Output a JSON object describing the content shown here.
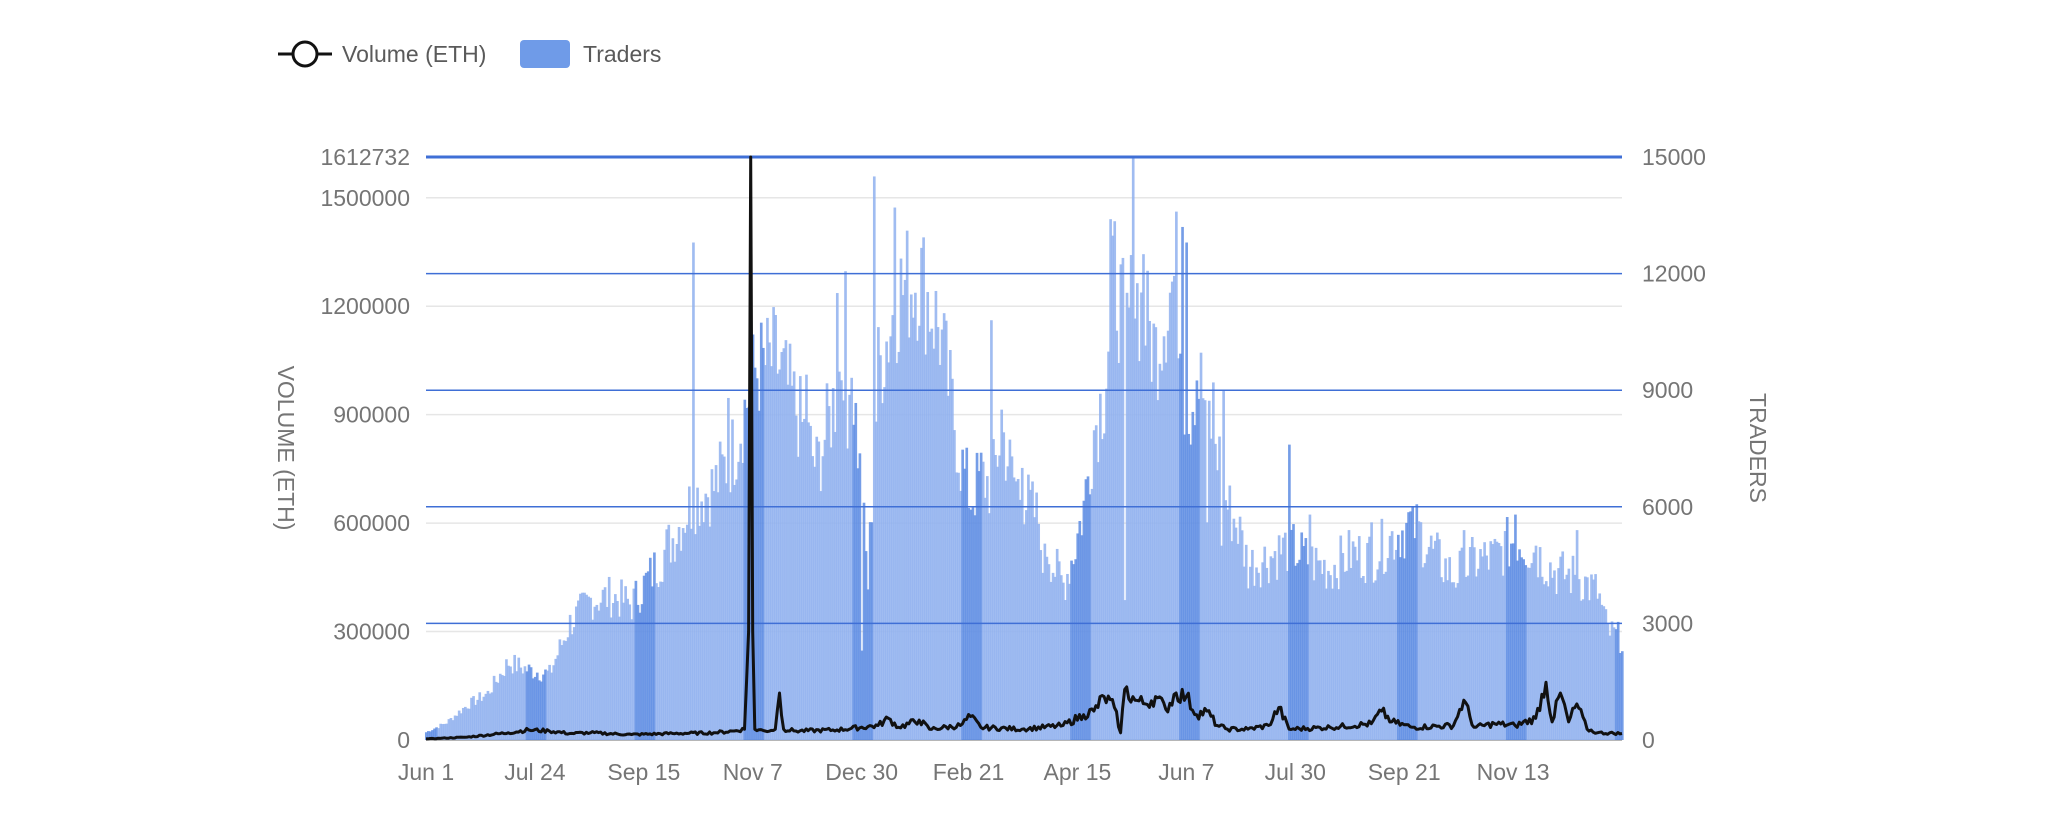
{
  "chart_data": {
    "type": "bar",
    "title": "",
    "legend": [
      {
        "name": "Volume (ETH)",
        "kind": "line-marker",
        "color": "#111111"
      },
      {
        "name": "Traders",
        "kind": "area",
        "color": "#6f9be8"
      }
    ],
    "legend_position": "top-left",
    "left_axis": {
      "label": "VOLUME (ETH)",
      "ylim": [
        0,
        1612732
      ],
      "ticks": [
        0,
        300000,
        600000,
        900000,
        1200000,
        1500000,
        1612732
      ],
      "tick_labels": [
        "0",
        "300000",
        "600000",
        "900000",
        "1200000",
        "1500000",
        "1612732"
      ]
    },
    "right_axis": {
      "label": "TRADERS",
      "ylim": [
        0,
        15000
      ],
      "ticks": [
        0,
        3000,
        6000,
        9000,
        12000,
        15000
      ],
      "tick_labels": [
        "0",
        "3000",
        "6000",
        "9000",
        "12000",
        "15000"
      ]
    },
    "x_tick_labels": [
      "Jun 1",
      "Jul 24",
      "Sep 15",
      "Nov 7",
      "Dec 30",
      "Feb 21",
      "Apr 15",
      "Jun 7",
      "Jul 30",
      "Sep 21",
      "Nov 13"
    ],
    "x_tick_positions": [
      0,
      53,
      106,
      159,
      212,
      264,
      317,
      370,
      423,
      476,
      529
    ],
    "x_range": [
      0,
      582
    ],
    "grid": {
      "left_axis": true,
      "right_axis": true
    },
    "colors": {
      "traders_fill": "#6f9be8",
      "volume_line": "#111111",
      "right_grid": "#3f6fd6",
      "left_grid": "#e6e6e6",
      "axis_text": "#757575"
    },
    "series": [
      {
        "name": "Traders",
        "axis": "right",
        "anchors": [
          [
            0,
            200
          ],
          [
            10,
            450
          ],
          [
            20,
            900
          ],
          [
            30,
            1200
          ],
          [
            40,
            2000
          ],
          [
            50,
            1800
          ],
          [
            60,
            1700
          ],
          [
            70,
            3000
          ],
          [
            80,
            3600
          ],
          [
            90,
            3700
          ],
          [
            100,
            3500
          ],
          [
            110,
            4300
          ],
          [
            120,
            5200
          ],
          [
            130,
            6200
          ],
          [
            140,
            6500
          ],
          [
            150,
            7500
          ],
          [
            160,
            9500
          ],
          [
            170,
            9800
          ],
          [
            180,
            8500
          ],
          [
            190,
            7000
          ],
          [
            200,
            9000
          ],
          [
            205,
            11000
          ],
          [
            210,
            7600
          ],
          [
            215,
            4000
          ],
          [
            220,
            9500
          ],
          [
            230,
            11500
          ],
          [
            240,
            12000
          ],
          [
            250,
            10500
          ],
          [
            260,
            7200
          ],
          [
            265,
            6200
          ],
          [
            270,
            6800
          ],
          [
            275,
            6500
          ],
          [
            280,
            8000
          ],
          [
            285,
            6800
          ],
          [
            290,
            6300
          ],
          [
            300,
            5500
          ],
          [
            305,
            4500
          ],
          [
            310,
            4000
          ],
          [
            315,
            4800
          ],
          [
            320,
            6000
          ],
          [
            325,
            8000
          ],
          [
            330,
            9000
          ],
          [
            335,
            12000
          ],
          [
            340,
            10500
          ],
          [
            345,
            11500
          ],
          [
            350,
            10800
          ],
          [
            355,
            10000
          ],
          [
            360,
            11200
          ],
          [
            365,
            12000
          ],
          [
            370,
            8000
          ],
          [
            375,
            9500
          ],
          [
            380,
            8500
          ],
          [
            385,
            7500
          ],
          [
            390,
            6000
          ],
          [
            395,
            5500
          ],
          [
            400,
            4500
          ],
          [
            410,
            4700
          ],
          [
            420,
            5000
          ],
          [
            430,
            4600
          ],
          [
            440,
            4400
          ],
          [
            450,
            4800
          ],
          [
            460,
            4700
          ],
          [
            470,
            5200
          ],
          [
            480,
            5600
          ],
          [
            490,
            4800
          ],
          [
            500,
            4200
          ],
          [
            510,
            4600
          ],
          [
            520,
            4700
          ],
          [
            530,
            5200
          ],
          [
            540,
            4800
          ],
          [
            550,
            4300
          ],
          [
            560,
            4200
          ],
          [
            570,
            3800
          ],
          [
            575,
            2800
          ],
          [
            582,
            2600
          ]
        ],
        "spikes": [
          [
            130,
            12800
          ],
          [
            147,
            8800
          ],
          [
            158,
            8400
          ],
          [
            185,
            9400
          ],
          [
            200,
            11500
          ],
          [
            205,
            12500
          ],
          [
            218,
            14500
          ],
          [
            228,
            13700
          ],
          [
            275,
            10800
          ],
          [
            280,
            8500
          ],
          [
            290,
            7000
          ],
          [
            333,
            13400
          ],
          [
            344,
            15000
          ],
          [
            349,
            12500
          ],
          [
            368,
            13200
          ],
          [
            370,
            12800
          ],
          [
            383,
            9200
          ],
          [
            388,
            9000
          ],
          [
            387,
            5000
          ],
          [
            420,
            7600
          ],
          [
            430,
            5800
          ],
          [
            460,
            5600
          ],
          [
            480,
            6000
          ],
          [
            505,
            5400
          ],
          [
            530,
            5800
          ],
          [
            540,
            5000
          ],
          [
            560,
            5400
          ]
        ],
        "dips": [
          [
            205,
            7500
          ],
          [
            212,
            2300
          ],
          [
            300,
            4300
          ],
          [
            340,
            3600
          ],
          [
            380,
            5600
          ],
          [
            400,
            3900
          ]
        ]
      },
      {
        "name": "Volume (ETH)",
        "axis": "left",
        "anchors": [
          [
            0,
            3000
          ],
          [
            20,
            8000
          ],
          [
            40,
            20000
          ],
          [
            50,
            28000
          ],
          [
            60,
            25000
          ],
          [
            70,
            18000
          ],
          [
            80,
            20000
          ],
          [
            100,
            15000
          ],
          [
            120,
            18000
          ],
          [
            140,
            20000
          ],
          [
            150,
            25000
          ],
          [
            155,
            30000
          ],
          [
            157,
            300000
          ],
          [
            158,
            1612732
          ],
          [
            159,
            300000
          ],
          [
            160,
            30000
          ],
          [
            165,
            25000
          ],
          [
            170,
            30000
          ],
          [
            172,
            130000
          ],
          [
            174,
            30000
          ],
          [
            180,
            25000
          ],
          [
            200,
            28000
          ],
          [
            220,
            40000
          ],
          [
            225,
            60000
          ],
          [
            230,
            35000
          ],
          [
            240,
            55000
          ],
          [
            245,
            30000
          ],
          [
            260,
            40000
          ],
          [
            265,
            65000
          ],
          [
            270,
            35000
          ],
          [
            290,
            30000
          ],
          [
            310,
            40000
          ],
          [
            320,
            70000
          ],
          [
            325,
            80000
          ],
          [
            330,
            120000
          ],
          [
            335,
            90000
          ],
          [
            338,
            20000
          ],
          [
            340,
            140000
          ],
          [
            345,
            110000
          ],
          [
            350,
            100000
          ],
          [
            355,
            120000
          ],
          [
            360,
            85000
          ],
          [
            365,
            130000
          ],
          [
            370,
            120000
          ],
          [
            375,
            70000
          ],
          [
            380,
            80000
          ],
          [
            385,
            40000
          ],
          [
            390,
            30000
          ],
          [
            400,
            30000
          ],
          [
            410,
            40000
          ],
          [
            415,
            90000
          ],
          [
            420,
            30000
          ],
          [
            440,
            35000
          ],
          [
            460,
            45000
          ],
          [
            465,
            80000
          ],
          [
            470,
            50000
          ],
          [
            480,
            35000
          ],
          [
            500,
            40000
          ],
          [
            505,
            110000
          ],
          [
            510,
            35000
          ],
          [
            520,
            45000
          ],
          [
            530,
            40000
          ],
          [
            540,
            60000
          ],
          [
            545,
            160000
          ],
          [
            548,
            50000
          ],
          [
            552,
            130000
          ],
          [
            556,
            50000
          ],
          [
            560,
            100000
          ],
          [
            565,
            30000
          ],
          [
            570,
            20000
          ],
          [
            582,
            18000
          ]
        ]
      }
    ]
  }
}
